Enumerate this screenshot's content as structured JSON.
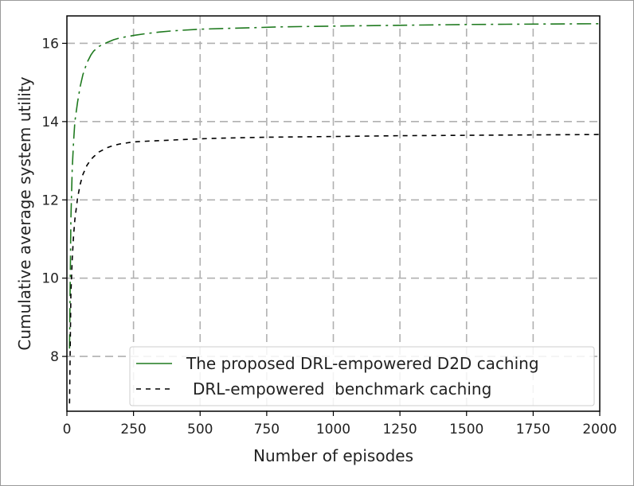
{
  "chart_data": {
    "type": "line",
    "title": "",
    "xlabel": "Number of episodes",
    "ylabel": "Cumulative average system utility",
    "xlim": [
      0,
      2000
    ],
    "ylim": [
      6.6,
      16.7
    ],
    "xticks": [
      0,
      250,
      500,
      750,
      1000,
      1250,
      1500,
      1750,
      2000
    ],
    "yticks": [
      8,
      10,
      12,
      14,
      16
    ],
    "grid": true,
    "legend_position": "bottom-right",
    "series": [
      {
        "name": "The proposed DRL-empowered D2D caching",
        "color": "#1f7a1f",
        "style": "dashdot",
        "x": [
          10,
          15,
          20,
          25,
          30,
          40,
          50,
          60,
          75,
          90,
          100,
          120,
          150,
          175,
          200,
          250,
          300,
          350,
          400,
          500,
          600,
          700,
          800,
          900,
          1000,
          1250,
          1500,
          1750,
          2000
        ],
        "y": [
          8.2,
          11.5,
          12.8,
          13.5,
          14.0,
          14.5,
          14.9,
          15.2,
          15.5,
          15.7,
          15.8,
          15.92,
          16.02,
          16.09,
          16.14,
          16.2,
          16.25,
          16.29,
          16.32,
          16.36,
          16.38,
          16.4,
          16.42,
          16.43,
          16.44,
          16.46,
          16.48,
          16.49,
          16.5
        ]
      },
      {
        "name": "DRL-empowered  benchmark caching",
        "color": "#000000",
        "style": "dashed",
        "x": [
          10,
          15,
          20,
          25,
          30,
          40,
          50,
          60,
          75,
          90,
          100,
          120,
          150,
          175,
          200,
          250,
          300,
          400,
          500,
          600,
          750,
          1000,
          1250,
          1500,
          1750,
          2000
        ],
        "y": [
          6.8,
          9.6,
          10.5,
          11.1,
          11.5,
          12.05,
          12.4,
          12.65,
          12.88,
          13.03,
          13.1,
          13.22,
          13.33,
          13.39,
          13.43,
          13.48,
          13.5,
          13.53,
          13.56,
          13.58,
          13.6,
          13.62,
          13.64,
          13.65,
          13.66,
          13.67
        ]
      }
    ]
  }
}
